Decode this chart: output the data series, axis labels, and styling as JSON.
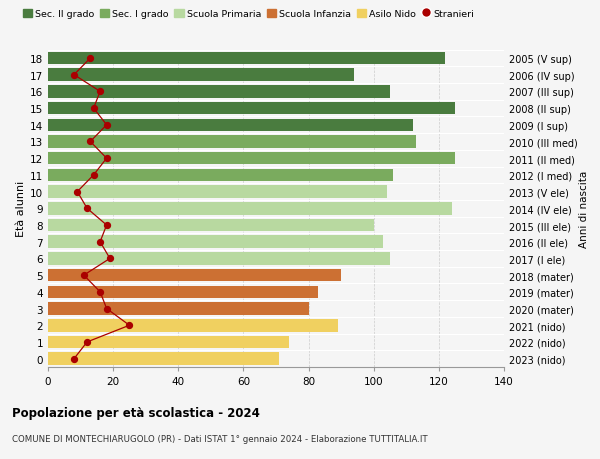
{
  "ages": [
    18,
    17,
    16,
    15,
    14,
    13,
    12,
    11,
    10,
    9,
    8,
    7,
    6,
    5,
    4,
    3,
    2,
    1,
    0
  ],
  "years": [
    "2005 (V sup)",
    "2006 (IV sup)",
    "2007 (III sup)",
    "2008 (II sup)",
    "2009 (I sup)",
    "2010 (III med)",
    "2011 (II med)",
    "2012 (I med)",
    "2013 (V ele)",
    "2014 (IV ele)",
    "2015 (III ele)",
    "2016 (II ele)",
    "2017 (I ele)",
    "2018 (mater)",
    "2019 (mater)",
    "2020 (mater)",
    "2021 (nido)",
    "2022 (nido)",
    "2023 (nido)"
  ],
  "bar_values": [
    122,
    94,
    105,
    125,
    112,
    113,
    125,
    106,
    104,
    124,
    100,
    103,
    105,
    90,
    83,
    80,
    89,
    74,
    71
  ],
  "bar_colors": [
    "#4a7c3f",
    "#4a7c3f",
    "#4a7c3f",
    "#4a7c3f",
    "#4a7c3f",
    "#7aab5e",
    "#7aab5e",
    "#7aab5e",
    "#b8d9a0",
    "#b8d9a0",
    "#b8d9a0",
    "#b8d9a0",
    "#b8d9a0",
    "#cc7033",
    "#cc7033",
    "#cc7033",
    "#f0d060",
    "#f0d060",
    "#f0d060"
  ],
  "stranieri": [
    13,
    8,
    16,
    14,
    18,
    13,
    18,
    14,
    9,
    12,
    18,
    16,
    19,
    11,
    16,
    18,
    25,
    12,
    8
  ],
  "legend_labels": [
    "Sec. II grado",
    "Sec. I grado",
    "Scuola Primaria",
    "Scuola Infanzia",
    "Asilo Nido",
    "Stranieri"
  ],
  "legend_colors": [
    "#4a7c3f",
    "#7aab5e",
    "#b8d9a0",
    "#cc7033",
    "#f0d060",
    "#aa0000"
  ],
  "ylabel_left": "Età alunni",
  "ylabel_right": "Anni di nascita",
  "xlim": [
    0,
    140
  ],
  "xticks": [
    0,
    20,
    40,
    60,
    80,
    100,
    120,
    140
  ],
  "title": "Popolazione per età scolastica - 2024",
  "subtitle": "COMUNE DI MONTECHIARUGOLO (PR) - Dati ISTAT 1° gennaio 2024 - Elaborazione TUTTITALIA.IT",
  "background_color": "#f5f5f5",
  "stranieri_color": "#aa0000",
  "line_color": "#aa0000",
  "bar_height": 0.75
}
